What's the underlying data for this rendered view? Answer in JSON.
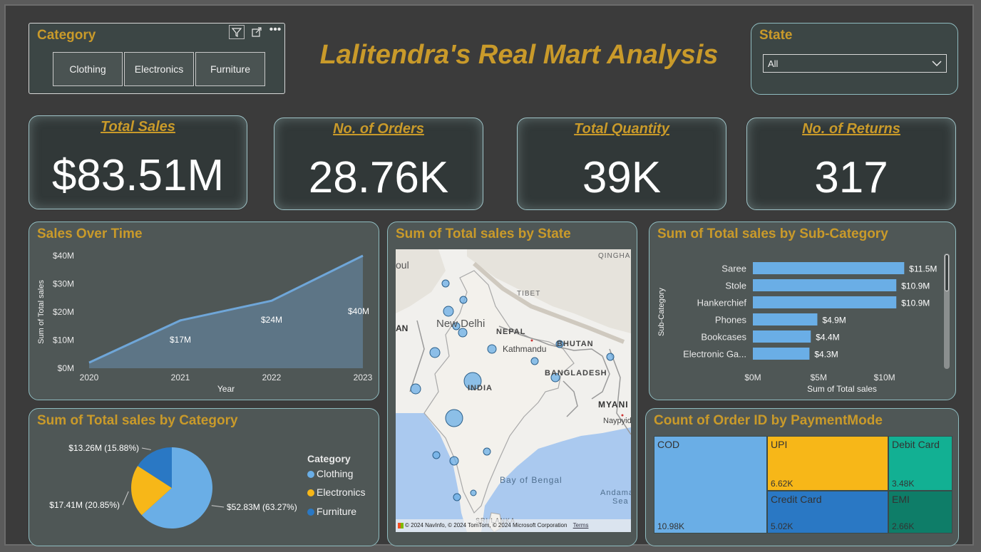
{
  "title": "Lalitendra's Real Mart Analysis",
  "category_slicer": {
    "title": "Category",
    "options": [
      "Clothing",
      "Electronics",
      "Furniture"
    ],
    "icons": [
      "filter-icon",
      "focus-mode-icon",
      "more-options-icon"
    ]
  },
  "state_slicer": {
    "title": "State",
    "selected": "All"
  },
  "kpis": [
    {
      "label": "Total Sales",
      "value": "$83.51M"
    },
    {
      "label": "No. of Orders",
      "value": "28.76K"
    },
    {
      "label": "Total Quantity",
      "value": "39K"
    },
    {
      "label": "No. of Returns",
      "value": "317"
    }
  ],
  "sales_over_time": {
    "title": "Sales Over Time",
    "xlabel": "Year",
    "ylabel": "Sum of Total sales",
    "y_ticks": [
      "$0M",
      "$10M",
      "$20M",
      "$30M",
      "$40M"
    ],
    "data_labels": [
      "$17M",
      "$24M",
      "$40M"
    ]
  },
  "map": {
    "title": "Sum of Total sales by State",
    "labels": {
      "new_delhi": "New Delhi",
      "nepal": "NEPAL",
      "kathmandu": "Kathmandu",
      "tibet": "TIBET",
      "bhutan": "BHUTAN",
      "bangladesh": "BANGLADESH",
      "india": "INDIA",
      "myanmar": "MYANI",
      "naypyidaw": "Naypyid",
      "bay_of_bengal": "Bay of Bengal",
      "andaman_sea_1": "Andama",
      "andaman_sea_2": "Sea",
      "qinghai": "QINGHAI",
      "kabul": "oul",
      "pakistan": "AN",
      "sri_lanka": "SRI LANKA"
    },
    "copyright": "© 2024 NavInfo, © 2024 TomTom, © 2024 Microsoft Corporation",
    "terms": "Terms"
  },
  "subcategory": {
    "title": "Sum of Total sales by Sub-Category",
    "xlabel": "Sum of Total sales",
    "ylabel": "Sub-Category",
    "x_ticks": [
      "$0M",
      "$5M",
      "$10M"
    ],
    "value_labels": [
      "$11.5M",
      "$10.9M",
      "$10.9M",
      "$4.9M",
      "$4.4M",
      "$4.3M"
    ]
  },
  "category_pie": {
    "title": "Sum of Total sales by Category",
    "legend_title": "Category",
    "labels": [
      "$52.83M (63.27%)",
      "$17.41M (20.85%)",
      "$13.26M (15.88%)"
    ]
  },
  "payment": {
    "title": "Count of Order ID by PaymentMode",
    "cells": [
      {
        "name": "COD",
        "value": "10.98K"
      },
      {
        "name": "UPI",
        "value": "6.62K"
      },
      {
        "name": "Debit Card",
        "value": "3.48K"
      },
      {
        "name": "Credit Card",
        "value": "5.02K"
      },
      {
        "name": "EMI",
        "value": "2.66K"
      }
    ]
  },
  "chart_data": [
    {
      "type": "area",
      "title": "Sales Over Time",
      "x": [
        "2020",
        "2021",
        "2022",
        "2023"
      ],
      "values": [
        2,
        17,
        24,
        40
      ],
      "xlabel": "Year",
      "ylabel": "Sum of Total sales",
      "ylim": [
        0,
        40
      ],
      "units": "$M",
      "color": "#6fa6d8"
    },
    {
      "type": "bar",
      "orientation": "horizontal",
      "title": "Sum of Total sales by Sub-Category",
      "categories": [
        "Saree",
        "Stole",
        "Hankerchief",
        "Phones",
        "Bookcases",
        "Electronic Ga..."
      ],
      "values": [
        11.5,
        10.9,
        10.9,
        4.9,
        4.4,
        4.3
      ],
      "xlabel": "Sum of Total sales",
      "ylabel": "Sub-Category",
      "xlim": [
        0,
        13
      ],
      "units": "$M",
      "color": "#6aaee6"
    },
    {
      "type": "pie",
      "title": "Sum of Total sales by Category",
      "categories": [
        "Clothing",
        "Electronics",
        "Furniture"
      ],
      "values": [
        52.83,
        17.41,
        13.26
      ],
      "percent": [
        63.27,
        20.85,
        15.88
      ],
      "colors": [
        "#6aaee6",
        "#f7b718",
        "#2a78c4"
      ],
      "legend": "right"
    },
    {
      "type": "treemap",
      "title": "Count of Order ID by PaymentMode",
      "categories": [
        "COD",
        "UPI",
        "Credit Card",
        "Debit Card",
        "EMI"
      ],
      "values": [
        10.98,
        6.62,
        5.02,
        3.48,
        2.66
      ],
      "units": "K",
      "colors": [
        "#6aaee6",
        "#f7b718",
        "#2a78c4",
        "#12b093",
        "#0e7d68"
      ]
    }
  ],
  "colors": {
    "accent": "#c99a2a",
    "card_bg": "#4f5756",
    "kpi_bg": "#313838",
    "border": "#8fbcc0",
    "page_bg": "#3b3b3b"
  }
}
